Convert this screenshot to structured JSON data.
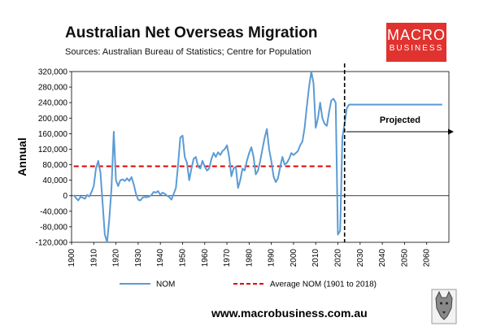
{
  "header": {
    "title": "Australian Net Overseas Migration",
    "subtitle": "Sources: Australian Bureau of Statistics; Centre for Population"
  },
  "logo": {
    "line1": "MACRO",
    "line2": "BUSINESS"
  },
  "footer": {
    "website": "www.macrobusiness.com.au"
  },
  "colors": {
    "nom_line": "#5b9bd5",
    "average_line": "#e00000",
    "logo_bg": "#e0332f"
  },
  "chart_data": {
    "type": "line",
    "title": "Australian Net Overseas Migration",
    "subtitle": "Sources: Australian Bureau of Statistics; Centre for Population",
    "ylabel": "Annual",
    "xlabel": "",
    "xlim": [
      1900,
      2070
    ],
    "ylim": [
      -120000,
      320000
    ],
    "x_ticks": [
      1900,
      1910,
      1920,
      1930,
      1940,
      1950,
      1960,
      1970,
      1980,
      1990,
      2000,
      2010,
      2020,
      2030,
      2040,
      2050,
      2060
    ],
    "y_ticks": [
      -120000,
      -80000,
      -40000,
      0,
      40000,
      80000,
      120000,
      160000,
      200000,
      240000,
      280000,
      320000
    ],
    "y_tick_labels": [
      "-120,000",
      "-80,000",
      "-40,000",
      "0",
      "40,000",
      "80,000",
      "120,000",
      "160,000",
      "200,000",
      "240,000",
      "280,000",
      "320,000"
    ],
    "grid": false,
    "legend_position": "bottom",
    "series": [
      {
        "name": "NOM",
        "x": [
          1901,
          1902,
          1903,
          1904,
          1905,
          1906,
          1907,
          1908,
          1909,
          1910,
          1911,
          1912,
          1913,
          1914,
          1915,
          1916,
          1917,
          1918,
          1919,
          1920,
          1921,
          1922,
          1923,
          1924,
          1925,
          1926,
          1927,
          1928,
          1929,
          1930,
          1931,
          1932,
          1933,
          1934,
          1935,
          1936,
          1937,
          1938,
          1939,
          1940,
          1941,
          1942,
          1943,
          1944,
          1945,
          1946,
          1947,
          1948,
          1949,
          1950,
          1951,
          1952,
          1953,
          1954,
          1955,
          1956,
          1957,
          1958,
          1959,
          1960,
          1961,
          1962,
          1963,
          1964,
          1965,
          1966,
          1967,
          1968,
          1969,
          1970,
          1971,
          1972,
          1973,
          1974,
          1975,
          1976,
          1977,
          1978,
          1979,
          1980,
          1981,
          1982,
          1983,
          1984,
          1985,
          1986,
          1987,
          1988,
          1989,
          1990,
          1991,
          1992,
          1993,
          1994,
          1995,
          1996,
          1997,
          1998,
          1999,
          2000,
          2001,
          2002,
          2003,
          2004,
          2005,
          2006,
          2007,
          2008,
          2009,
          2010,
          2011,
          2012,
          2013,
          2014,
          2015,
          2016,
          2017,
          2018,
          2019,
          2020,
          2021,
          2022,
          2023,
          2024,
          2025,
          2026,
          2027,
          2028,
          2029,
          2030,
          2031,
          2032,
          2033,
          2034,
          2035,
          2036,
          2037,
          2038,
          2039,
          2040,
          2041,
          2042,
          2043,
          2044,
          2045,
          2046,
          2047,
          2048,
          2049,
          2050,
          2051,
          2052,
          2053,
          2054,
          2055,
          2056,
          2057,
          2058,
          2059,
          2060,
          2061,
          2062,
          2063,
          2064,
          2065,
          2066,
          2067
        ],
        "values": [
          2000,
          -6000,
          -12000,
          -3000,
          -5000,
          -8000,
          2000,
          -2000,
          10000,
          25000,
          70000,
          90000,
          60000,
          -20000,
          -100000,
          -120000,
          -60000,
          20000,
          165000,
          40000,
          25000,
          40000,
          42000,
          38000,
          45000,
          38000,
          48000,
          30000,
          5000,
          -10000,
          -12000,
          -5000,
          -3000,
          -4000,
          -2000,
          2000,
          10000,
          8000,
          12000,
          2000,
          8000,
          5000,
          0,
          -3000,
          -10000,
          5000,
          20000,
          80000,
          150000,
          155000,
          100000,
          85000,
          40000,
          70000,
          95000,
          100000,
          75000,
          70000,
          90000,
          75000,
          65000,
          70000,
          95000,
          110000,
          100000,
          112000,
          105000,
          115000,
          120000,
          130000,
          100000,
          50000,
          70000,
          75000,
          20000,
          40000,
          70000,
          65000,
          90000,
          110000,
          125000,
          100000,
          55000,
          65000,
          90000,
          120000,
          150000,
          172000,
          120000,
          90000,
          50000,
          35000,
          45000,
          75000,
          100000,
          80000,
          85000,
          95000,
          110000,
          105000,
          110000,
          115000,
          130000,
          140000,
          175000,
          230000,
          280000,
          320000,
          290000,
          175000,
          200000,
          240000,
          200000,
          185000,
          180000,
          215000,
          245000,
          250000,
          240000,
          -100000,
          -90000,
          150000,
          185000,
          225000,
          235000,
          235000,
          235000,
          235000,
          235000,
          235000,
          235000,
          235000,
          235000,
          235000,
          235000,
          235000,
          235000,
          235000,
          235000,
          235000,
          235000,
          235000,
          235000,
          235000,
          235000,
          235000,
          235000,
          235000,
          235000,
          235000,
          235000,
          235000,
          235000,
          235000,
          235000,
          235000,
          235000,
          235000,
          235000,
          235000,
          235000,
          235000,
          235000,
          235000,
          235000,
          235000,
          235000
        ]
      },
      {
        "name": "Average NOM (1901 to 2018)",
        "x": [
          1901,
          2018
        ],
        "values": [
          76000,
          76000
        ]
      }
    ],
    "annotations": [
      {
        "text": "Projected",
        "x_start": 2023
      }
    ]
  }
}
